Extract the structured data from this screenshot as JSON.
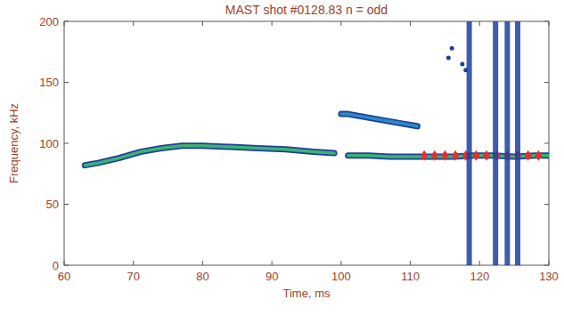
{
  "chart_data": {
    "type": "spectrogram",
    "title": "MAST shot #0128.83 n = odd",
    "x_label": "Time, ms",
    "y_label": "Frequency, kHz",
    "xlim": [
      60,
      130
    ],
    "xticks": [
      60,
      70,
      80,
      90,
      100,
      110,
      120,
      130
    ],
    "ylim": [
      0,
      200
    ],
    "yticks": [
      0,
      50,
      100,
      150,
      200
    ],
    "grid": false,
    "series": [
      {
        "type": "line",
        "color": "#3cb371",
        "x": [
          63,
          65,
          68,
          71,
          74,
          77,
          80,
          84,
          88,
          92,
          96,
          99
        ],
        "values": [
          82,
          84,
          88,
          93,
          96,
          98,
          98,
          97,
          96,
          95,
          93,
          92
        ]
      },
      {
        "type": "line",
        "color": "#2e8bc0",
        "x": [
          100,
          101,
          103,
          105,
          107,
          109,
          111
        ],
        "values": [
          124,
          124,
          122,
          120,
          118,
          116,
          114
        ]
      },
      {
        "type": "line",
        "color": "#3cb371",
        "x": [
          101,
          104,
          107,
          110,
          113,
          116,
          119,
          122,
          125,
          128,
          130
        ],
        "values": [
          90,
          90,
          89,
          89,
          89,
          89,
          90,
          90,
          89,
          90,
          90
        ]
      },
      {
        "type": "scatter",
        "marker": "diamond",
        "color": "#e8302a",
        "x": [
          112,
          113.5,
          115,
          116.5,
          118,
          119.5,
          121,
          122.5,
          124,
          125.5,
          127,
          128.5
        ],
        "values": [
          90,
          90,
          90,
          90,
          90,
          90,
          90,
          90,
          90,
          90,
          90,
          90
        ]
      },
      {
        "type": "band",
        "color": "#1f3f9f",
        "x": [
          118.5,
          122.3,
          124,
          125.5
        ],
        "values": [
          200,
          200,
          200,
          200
        ],
        "low": [
          0,
          0,
          0,
          0
        ]
      },
      {
        "type": "scatter",
        "marker": "circle",
        "color": "#1f3f9f",
        "x": [
          115.5,
          116,
          117.5,
          118
        ],
        "values": [
          170,
          178,
          165,
          160
        ]
      }
    ]
  }
}
